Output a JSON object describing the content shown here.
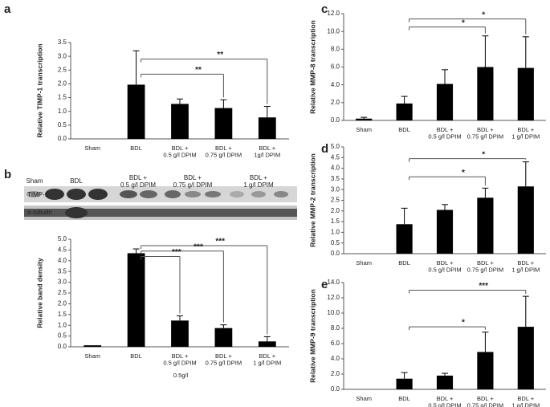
{
  "chart_data": [
    {
      "type": "bar",
      "label": "a",
      "ylabel": "Relative TIMP-1 transcription",
      "color": "#000000",
      "categories": [
        "Sham",
        "BDL",
        "BDL +\n0.5 g/l DPIM",
        "BDL +\n0.75 g/l DPIM",
        "BDL +\n1g/l DPIM"
      ],
      "values": [
        0,
        1.97,
        1.27,
        1.12,
        0.78
      ],
      "errors": [
        0,
        1.23,
        0.18,
        0.3,
        0.4
      ],
      "ylim": [
        0,
        3.5
      ],
      "yticks": [
        {
          "value": 0,
          "label": "0.0"
        },
        {
          "value": 0.5,
          "label": "0.5"
        },
        {
          "value": 1,
          "label": "1.0"
        },
        {
          "value": 1.5,
          "label": "1.5"
        },
        {
          "value": 2,
          "label": "2.0"
        },
        {
          "value": 2.5,
          "label": "2.5"
        },
        {
          "value": 3,
          "label": "3.0"
        },
        {
          "value": 3.5,
          "label": "3.5"
        }
      ],
      "brackets": [
        {
          "label": "**",
          "from": 1,
          "to": 4,
          "y": 2.9
        },
        {
          "label": "**",
          "from": 1,
          "to": 3,
          "y": 2.35
        }
      ]
    },
    {
      "type": "bar",
      "label": "b",
      "ylabel": "Relative band density",
      "color": "#000000",
      "blot": {
        "lanes": [
          "Sham",
          "BDL",
          "BDL +\n0.5 g/l DPIM",
          "BDL +\n0.75 g/l DPIM",
          "BDL +\n1 g/l DPIM"
        ],
        "rows": [
          "TIMP-1",
          "α-tubulin"
        ]
      },
      "annotations": [
        "0.5g/l"
      ],
      "categories": [
        "Sham",
        "BDL",
        "BDL +\n0.5 g/l DPIM",
        "BDL +\n0.75 g/l DPIM",
        "BDL +\n1 g/l DPIM"
      ],
      "values": [
        0.07,
        4.35,
        1.22,
        0.87,
        0.25
      ],
      "errors": [
        0,
        0.2,
        0.22,
        0.15,
        0.22
      ],
      "ylim": [
        0,
        5
      ],
      "yticks": [
        {
          "value": 0,
          "label": "0.0"
        },
        {
          "value": 0.5,
          "label": "0.5"
        },
        {
          "value": 1,
          "label": "1.0"
        },
        {
          "value": 1.5,
          "label": "1.5"
        },
        {
          "value": 2,
          "label": "2.0"
        },
        {
          "value": 2.5,
          "label": "2.5"
        },
        {
          "value": 3,
          "label": "3.0"
        },
        {
          "value": 3.5,
          "label": "3.5"
        },
        {
          "value": 4,
          "label": "4.0"
        },
        {
          "value": 4.5,
          "label": "4.5"
        },
        {
          "value": 5,
          "label": "5.0"
        }
      ],
      "brackets": [
        {
          "label": "***",
          "from": 1,
          "to": 4,
          "y": 4.7
        },
        {
          "label": "***",
          "from": 1,
          "to": 3,
          "y": 4.45
        },
        {
          "label": "***",
          "from": 1,
          "to": 2,
          "y": 4.2
        }
      ]
    },
    {
      "type": "bar",
      "label": "c",
      "ylabel": "Relative MMP-8 transcription",
      "color": "#000000",
      "categories": [
        "Sham",
        "BDL",
        "BDL +\n0.5 g/l DPIM",
        "BDL +\n0.75 g/l DPIM",
        "BDL +\n1 g/l DPIM"
      ],
      "values": [
        0.2,
        1.9,
        4.1,
        6.0,
        5.9
      ],
      "errors": [
        0.15,
        0.8,
        1.6,
        3.5,
        3.5
      ],
      "ylim": [
        0,
        12
      ],
      "yticks": [
        {
          "value": 0,
          "label": "0.0"
        },
        {
          "value": 2,
          "label": "2.0"
        },
        {
          "value": 4,
          "label": "4.0"
        },
        {
          "value": 6,
          "label": "6.0"
        },
        {
          "value": 8,
          "label": "8.0"
        },
        {
          "value": 10,
          "label": "10.0"
        },
        {
          "value": 12,
          "label": "12.0"
        }
      ],
      "brackets": [
        {
          "label": "*",
          "from": 1,
          "to": 4,
          "y": 11.4
        },
        {
          "label": "*",
          "from": 1,
          "to": 3,
          "y": 10.5
        }
      ]
    },
    {
      "type": "bar",
      "label": "d",
      "ylabel": "Relative MMP-2 transcription",
      "color": "#000000",
      "categories": [
        "Sham",
        "BDL",
        "BDL +\n0.5 g/l DPIM",
        "BDL +\n0.75 g/l DPIM",
        "BDL +\n1 g/l DPIM"
      ],
      "values": [
        0,
        1.38,
        2.05,
        2.62,
        3.15
      ],
      "errors": [
        0,
        0.75,
        0.25,
        0.45,
        1.15
      ],
      "ylim": [
        0,
        5
      ],
      "yticks": [
        {
          "value": 0,
          "label": "0.0"
        },
        {
          "value": 0.5,
          "label": "0.5"
        },
        {
          "value": 1,
          "label": "1.0"
        },
        {
          "value": 1.5,
          "label": "1.5"
        },
        {
          "value": 2,
          "label": "2.0"
        },
        {
          "value": 2.5,
          "label": "2.5"
        },
        {
          "value": 3,
          "label": "3.0"
        },
        {
          "value": 3.5,
          "label": "3.5"
        },
        {
          "value": 4,
          "label": "4.0"
        },
        {
          "value": 4.5,
          "label": "4.5"
        },
        {
          "value": 5,
          "label": "5.0"
        }
      ],
      "brackets": [
        {
          "label": "*",
          "from": 1,
          "to": 4,
          "y": 4.45
        },
        {
          "label": "*",
          "from": 1,
          "to": 3,
          "y": 3.6
        }
      ]
    },
    {
      "type": "bar",
      "label": "e",
      "ylabel": "Relative MMP-9 transcription",
      "color": "#000000",
      "categories": [
        "Sham",
        "BDL",
        "BDL +\n0.5 g/l DPIM",
        "BDL +\n0.75 g/l DPIM",
        "BDL +\n1 g/l DPIM"
      ],
      "values": [
        0,
        1.4,
        1.8,
        4.9,
        8.2
      ],
      "errors": [
        0,
        0.8,
        0.3,
        2.6,
        4.0
      ],
      "ylim": [
        0,
        14
      ],
      "yticks": [
        {
          "value": 0,
          "label": "0.0"
        },
        {
          "value": 2,
          "label": "2.0"
        },
        {
          "value": 4,
          "label": "4.0"
        },
        {
          "value": 6,
          "label": "6.0"
        },
        {
          "value": 8,
          "label": "8.0"
        },
        {
          "value": 10,
          "label": "10.0"
        },
        {
          "value": 12,
          "label": "12.0"
        },
        {
          "value": 14,
          "label": "14.0"
        }
      ],
      "brackets": [
        {
          "label": "***",
          "from": 1,
          "to": 4,
          "y": 13.0
        },
        {
          "label": "*",
          "from": 1,
          "to": 3,
          "y": 8.2
        }
      ]
    }
  ]
}
